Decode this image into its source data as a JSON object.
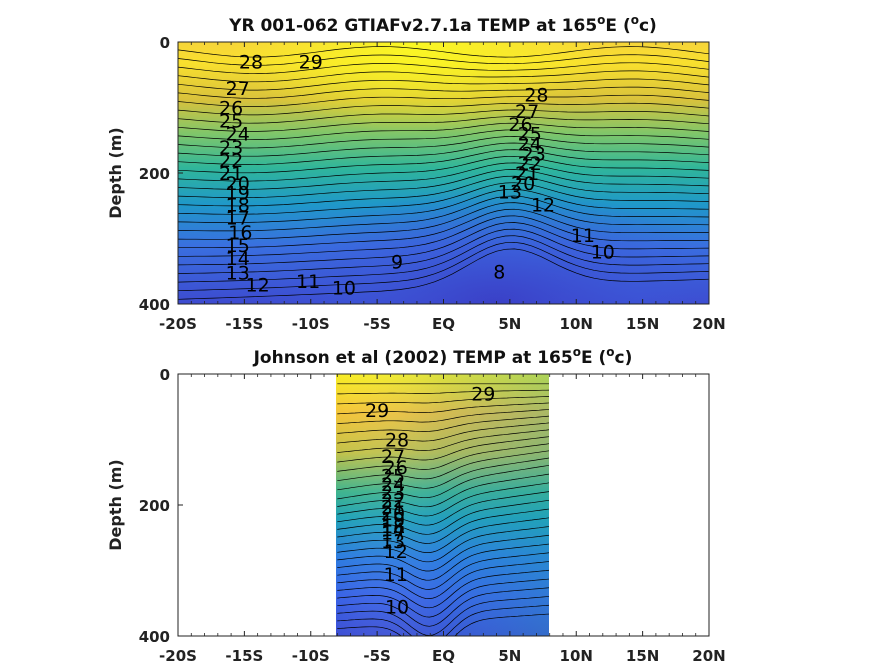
{
  "chart_data": [
    {
      "type": "heatmap",
      "title_main": "YR 001-062 GTIAFv2.7.1a TEMP at 165",
      "title_sup": "o",
      "title_mid": "E (",
      "title_sup2": "o",
      "title_end": "c)",
      "xlabel": "",
      "ylabel": "Depth (m)",
      "x_ticks": [
        "-20S",
        "-15S",
        "-10S",
        "-5S",
        "EQ",
        "5N",
        "10N",
        "15N",
        "20N"
      ],
      "x_tick_values": [
        -20,
        -15,
        -10,
        -5,
        0,
        5,
        10,
        15,
        20
      ],
      "y_ticks": [
        "0",
        "200",
        "400"
      ],
      "y_tick_values": [
        0,
        200,
        400
      ],
      "xlim": [
        -20,
        20
      ],
      "ylim": [
        400,
        0
      ],
      "data_extent": [
        -20,
        20
      ],
      "contour_labels": [
        {
          "text": "28",
          "x": -14.5,
          "y": 30
        },
        {
          "text": "29",
          "x": -10,
          "y": 30
        },
        {
          "text": "27",
          "x": -15.5,
          "y": 70
        },
        {
          "text": "26",
          "x": -16,
          "y": 100
        },
        {
          "text": "25",
          "x": -16,
          "y": 120
        },
        {
          "text": "24",
          "x": -15.5,
          "y": 140
        },
        {
          "text": "23",
          "x": -16,
          "y": 160
        },
        {
          "text": "22",
          "x": -16,
          "y": 180
        },
        {
          "text": "21",
          "x": -16,
          "y": 200
        },
        {
          "text": "20",
          "x": -15.5,
          "y": 215
        },
        {
          "text": "19",
          "x": -15.5,
          "y": 230
        },
        {
          "text": "18",
          "x": -15.5,
          "y": 248
        },
        {
          "text": "17",
          "x": -15.5,
          "y": 268
        },
        {
          "text": "16",
          "x": -15.3,
          "y": 290
        },
        {
          "text": "15",
          "x": -15.5,
          "y": 310
        },
        {
          "text": "14",
          "x": -15.5,
          "y": 330
        },
        {
          "text": "13",
          "x": -15.5,
          "y": 352
        },
        {
          "text": "12",
          "x": -14,
          "y": 370
        },
        {
          "text": "11",
          "x": -10.2,
          "y": 365
        },
        {
          "text": "10",
          "x": -7.5,
          "y": 375
        },
        {
          "text": "9",
          "x": -3.5,
          "y": 335
        },
        {
          "text": "8",
          "x": 4.2,
          "y": 350
        },
        {
          "text": "28",
          "x": 7,
          "y": 80
        },
        {
          "text": "27",
          "x": 6.3,
          "y": 105
        },
        {
          "text": "26",
          "x": 5.8,
          "y": 125
        },
        {
          "text": "25",
          "x": 6.5,
          "y": 140
        },
        {
          "text": "24",
          "x": 6.5,
          "y": 155
        },
        {
          "text": "23",
          "x": 6.8,
          "y": 170
        },
        {
          "text": "22",
          "x": 6.5,
          "y": 185
        },
        {
          "text": "21",
          "x": 6.3,
          "y": 200
        },
        {
          "text": "20",
          "x": 6,
          "y": 215
        },
        {
          "text": "13",
          "x": 5,
          "y": 228
        },
        {
          "text": "12",
          "x": 7.5,
          "y": 248
        },
        {
          "text": "11",
          "x": 10.5,
          "y": 295
        },
        {
          "text": "10",
          "x": 12,
          "y": 320
        }
      ]
    },
    {
      "type": "heatmap",
      "title_main": "Johnson et al (2002) TEMP at 165",
      "title_sup": "o",
      "title_mid": "E (",
      "title_sup2": "o",
      "title_end": "c)",
      "xlabel": "",
      "ylabel": "Depth (m)",
      "x_ticks": [
        "-20S",
        "-15S",
        "-10S",
        "-5S",
        "EQ",
        "5N",
        "10N",
        "15N",
        "20N"
      ],
      "x_tick_values": [
        -20,
        -15,
        -10,
        -5,
        0,
        5,
        10,
        15,
        20
      ],
      "y_ticks": [
        "0",
        "200",
        "400"
      ],
      "y_tick_values": [
        0,
        200,
        400
      ],
      "xlim": [
        -20,
        20
      ],
      "ylim": [
        400,
        0
      ],
      "data_extent": [
        -8,
        8
      ],
      "contour_labels": [
        {
          "text": "29",
          "x": -5,
          "y": 55
        },
        {
          "text": "29",
          "x": 3,
          "y": 30
        },
        {
          "text": "28",
          "x": -3.5,
          "y": 100
        },
        {
          "text": "27",
          "x": -3.8,
          "y": 125
        },
        {
          "text": "26",
          "x": -3.6,
          "y": 142
        },
        {
          "text": "25",
          "x": -3.8,
          "y": 155
        },
        {
          "text": "24",
          "x": -3.8,
          "y": 168
        },
        {
          "text": "23",
          "x": -3.8,
          "y": 180
        },
        {
          "text": "22",
          "x": -3.8,
          "y": 192
        },
        {
          "text": "21",
          "x": -3.8,
          "y": 202
        },
        {
          "text": "20",
          "x": -3.8,
          "y": 212
        },
        {
          "text": "19",
          "x": -3.8,
          "y": 222
        },
        {
          "text": "18",
          "x": -3.8,
          "y": 232
        },
        {
          "text": "17",
          "x": -3.8,
          "y": 242
        },
        {
          "text": "14",
          "x": -3.8,
          "y": 237
        },
        {
          "text": "13",
          "x": -3.8,
          "y": 255
        },
        {
          "text": "12",
          "x": -3.6,
          "y": 270
        },
        {
          "text": "11",
          "x": -3.6,
          "y": 305
        },
        {
          "text": "10",
          "x": -3.5,
          "y": 355
        }
      ]
    }
  ]
}
